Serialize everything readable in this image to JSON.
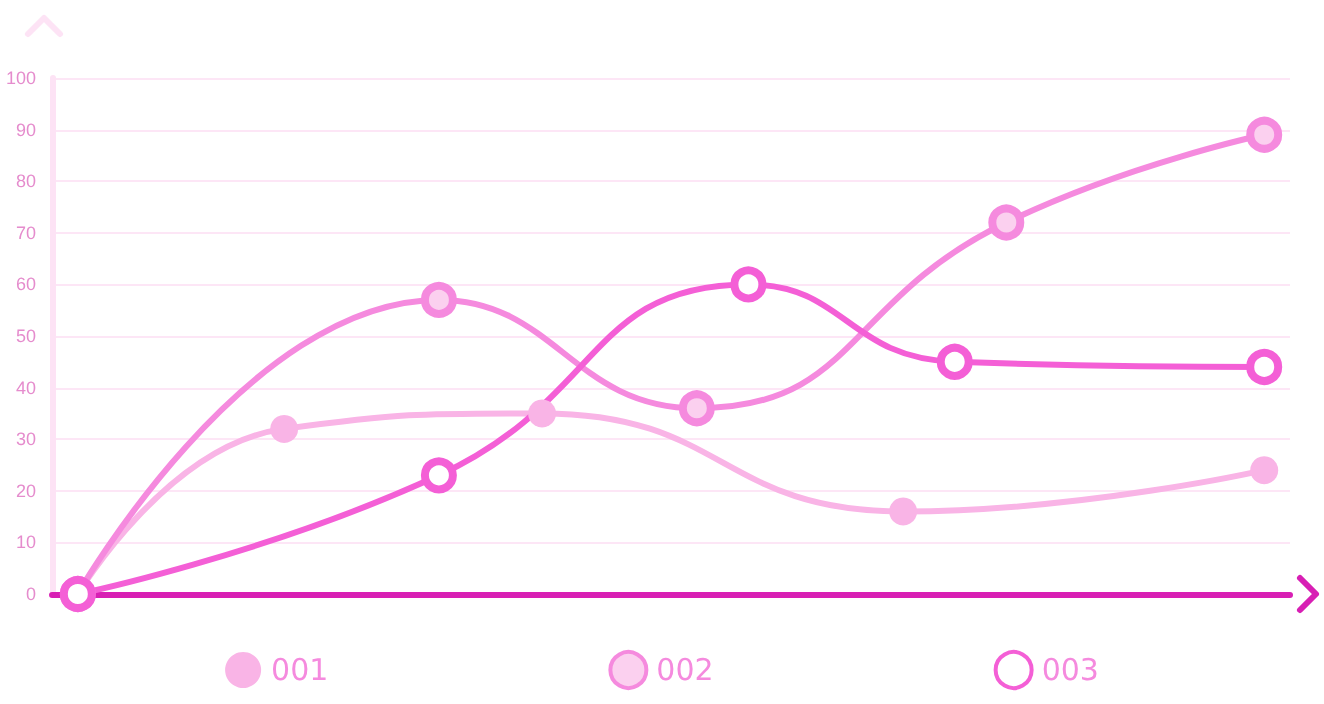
{
  "chart_data": {
    "type": "line",
    "categories": [
      null,
      null,
      null,
      null,
      null,
      null,
      null,
      null,
      null,
      null,
      null,
      null,
      null,
      null,
      null,
      null,
      null,
      null,
      null,
      null,
      null,
      null,
      null,
      null
    ],
    "series": [
      {
        "name": "001",
        "color": "#f9b4e6",
        "values": [
          0,
          null,
          null,
          null,
          32,
          null,
          null,
          null,
          null,
          35,
          null,
          null,
          null,
          null,
          null,
          null,
          16,
          null,
          null,
          null,
          null,
          null,
          null,
          24
        ]
      },
      {
        "name": "002",
        "color": "#f58ade",
        "values": [
          0,
          null,
          null,
          null,
          null,
          null,
          null,
          57,
          null,
          null,
          null,
          null,
          36,
          null,
          null,
          null,
          null,
          null,
          72,
          null,
          null,
          null,
          null,
          89
        ]
      },
      {
        "name": "003",
        "color": "#f45fd6",
        "values": [
          0,
          null,
          null,
          null,
          null,
          null,
          null,
          23,
          null,
          null,
          null,
          null,
          null,
          60,
          null,
          null,
          null,
          45,
          null,
          null,
          null,
          null,
          null,
          44
        ]
      }
    ],
    "ylim": [
      0,
      100
    ],
    "yticks": [
      0,
      10,
      20,
      30,
      40,
      50,
      60,
      70,
      80,
      90,
      100
    ],
    "grid": "y",
    "legend": "bottom",
    "marker": "circle",
    "line_style": "solid",
    "tick_labels": "y"
  }
}
